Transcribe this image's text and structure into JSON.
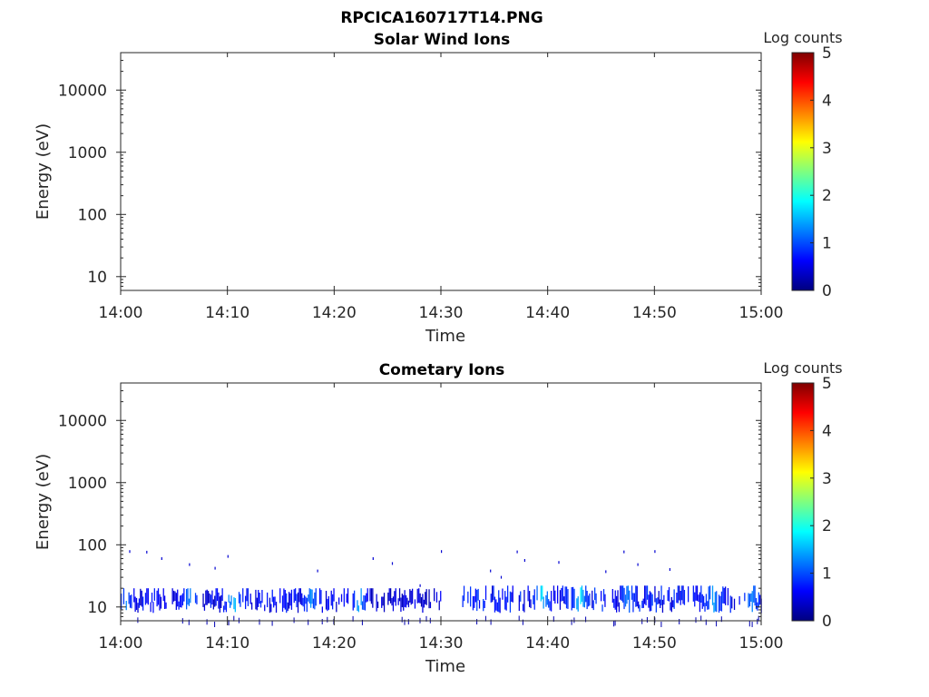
{
  "figure": {
    "title": "RPCICA160717T14.PNG"
  },
  "colorbar": {
    "colors": [
      "#00007f",
      "#0000ff",
      "#007fff",
      "#00ffff",
      "#7fff7f",
      "#ffff00",
      "#ff7f00",
      "#ff0000",
      "#7f0000"
    ]
  },
  "chart_data": [
    {
      "type": "heatmap",
      "title": "Solar Wind Ions",
      "xlabel": "Time",
      "ylabel": "Energy (eV)",
      "x_ticks": [
        "14:00",
        "14:10",
        "14:20",
        "14:30",
        "14:40",
        "14:50",
        "15:00"
      ],
      "xlim": [
        "14:00",
        "15:00"
      ],
      "y_scale": "log",
      "y_ticks": [
        "10",
        "100",
        "1000",
        "10000"
      ],
      "ylim": [
        6,
        40000
      ],
      "colorbar": {
        "label": "Log counts",
        "ticks": [
          "0",
          "1",
          "2",
          "3",
          "4",
          "5"
        ],
        "range": [
          0,
          5
        ]
      },
      "bands": []
    },
    {
      "type": "heatmap",
      "title": "Cometary Ions",
      "xlabel": "Time",
      "ylabel": "Energy (eV)",
      "x_ticks": [
        "14:00",
        "14:10",
        "14:20",
        "14:30",
        "14:40",
        "14:50",
        "15:00"
      ],
      "xlim": [
        "14:00",
        "15:00"
      ],
      "y_scale": "log",
      "y_ticks": [
        "10",
        "100",
        "1000",
        "10000"
      ],
      "ylim": [
        6,
        40000
      ],
      "colorbar": {
        "label": "Log counts",
        "ticks": [
          "0",
          "1",
          "2",
          "3",
          "4",
          "5"
        ],
        "range": [
          0,
          5
        ]
      },
      "bands": [
        {
          "start": "14:00",
          "end": "14:22",
          "e_min": 8,
          "e_max": 20,
          "level": 0.6
        },
        {
          "start": "14:22",
          "end": "14:30",
          "e_min": 8,
          "e_max": 20,
          "level": 0.45
        },
        {
          "start": "14:32",
          "end": "15:00",
          "e_min": 8,
          "e_max": 22,
          "level": 0.7
        }
      ],
      "hotspots": [
        {
          "time": "14:00.5",
          "energy": 14,
          "level": 1.3
        },
        {
          "time": "14:06.5",
          "energy": 14,
          "level": 1.4
        },
        {
          "time": "14:10.5",
          "energy": 14,
          "level": 1.8
        },
        {
          "time": "14:17.8",
          "energy": 14,
          "level": 1.4
        },
        {
          "time": "14:22.3",
          "energy": 14,
          "level": 1.5
        },
        {
          "time": "14:39.5",
          "energy": 15,
          "level": 1.8
        },
        {
          "time": "14:43.0",
          "energy": 15,
          "level": 1.9
        },
        {
          "time": "14:47.5",
          "energy": 15,
          "level": 1.5
        },
        {
          "time": "14:55.5",
          "energy": 15,
          "level": 1.6
        },
        {
          "time": "14:59.0",
          "energy": 15,
          "level": 1.4
        }
      ],
      "scattered": [
        {
          "time": "14:00.8",
          "energy": 78
        },
        {
          "time": "14:02.4",
          "energy": 76
        },
        {
          "time": "14:03.8",
          "energy": 60
        },
        {
          "time": "14:06.4",
          "energy": 48
        },
        {
          "time": "14:08.8",
          "energy": 42
        },
        {
          "time": "14:10.0",
          "energy": 65
        },
        {
          "time": "14:18.4",
          "energy": 38
        },
        {
          "time": "14:23.6",
          "energy": 60
        },
        {
          "time": "14:25.4",
          "energy": 50
        },
        {
          "time": "14:28.0",
          "energy": 22
        },
        {
          "time": "14:30.0",
          "energy": 78
        },
        {
          "time": "14:34.6",
          "energy": 38
        },
        {
          "time": "14:35.6",
          "energy": 30
        },
        {
          "time": "14:37.1",
          "energy": 77
        },
        {
          "time": "14:37.8",
          "energy": 56
        },
        {
          "time": "14:41.0",
          "energy": 52
        },
        {
          "time": "14:45.4",
          "energy": 37
        },
        {
          "time": "14:47.1",
          "energy": 77
        },
        {
          "time": "14:48.4",
          "energy": 48
        },
        {
          "time": "14:50.0",
          "energy": 78
        },
        {
          "time": "14:51.4",
          "energy": 40
        }
      ]
    }
  ]
}
